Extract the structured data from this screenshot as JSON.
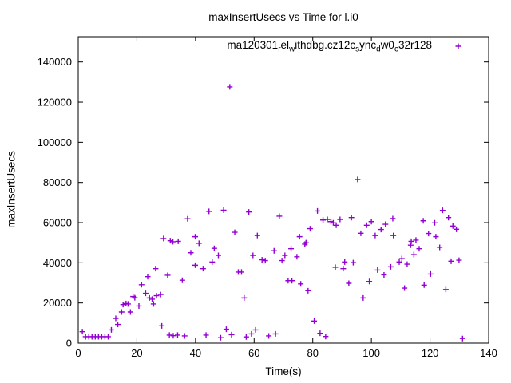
{
  "colors": {
    "series": "#9400D3",
    "axis": "#000000",
    "background": "#ffffff",
    "text": "#000000"
  },
  "legend": {
    "label_plain": "ma120301_rel_withdbg.cz12c_sync_dw0_c32r128",
    "segments": [
      {
        "text": "ma120301"
      },
      {
        "sub": "r"
      },
      {
        "text": "el"
      },
      {
        "sub": "w"
      },
      {
        "text": "ithdbg.cz12c"
      },
      {
        "sub": "s"
      },
      {
        "text": "ync"
      },
      {
        "sub": "d"
      },
      {
        "text": "w0"
      },
      {
        "sub": "c"
      },
      {
        "text": "32r128"
      }
    ],
    "marker": "plus"
  },
  "chart_data": {
    "type": "scatter",
    "title": "maxInsertUsecs vs Time for l.i0",
    "xlabel": "Time(s)",
    "ylabel": "maxInsertUsecs",
    "xlim": [
      0,
      140
    ],
    "x_ticks": [
      0,
      20,
      40,
      60,
      80,
      100,
      120,
      140
    ],
    "y_ticks": [
      0,
      20000,
      40000,
      60000,
      80000,
      100000,
      120000,
      140000
    ],
    "grid": false,
    "legend_position": "top-right-inside",
    "marker": "plus",
    "series": [
      {
        "name": "ma120301_rel_withdbg.cz12c_sync_dw0_c32r128",
        "points": [
          [
            1.4,
            5700
          ],
          [
            2.5,
            3200
          ],
          [
            3.6,
            3200
          ],
          [
            4.7,
            3200
          ],
          [
            5.8,
            3200
          ],
          [
            6.9,
            3200
          ],
          [
            8.0,
            3200
          ],
          [
            9.1,
            3200
          ],
          [
            10.2,
            3200
          ],
          [
            11.3,
            6600
          ],
          [
            12.8,
            12300
          ],
          [
            13.5,
            9300
          ],
          [
            14.8,
            15500
          ],
          [
            15.3,
            19200
          ],
          [
            16.3,
            19700
          ],
          [
            17.0,
            19500
          ],
          [
            17.8,
            15500
          ],
          [
            18.7,
            23200
          ],
          [
            19.3,
            22600
          ],
          [
            20.7,
            18500
          ],
          [
            21.6,
            29100
          ],
          [
            23.0,
            24800
          ],
          [
            23.7,
            33100
          ],
          [
            24.3,
            22500
          ],
          [
            25.2,
            21900
          ],
          [
            25.7,
            19500
          ],
          [
            26.4,
            37100
          ],
          [
            26.7,
            23600
          ],
          [
            28.1,
            24200
          ],
          [
            28.5,
            8600
          ],
          [
            29.1,
            52100
          ],
          [
            30.5,
            33800
          ],
          [
            31.1,
            4000
          ],
          [
            31.4,
            51000
          ],
          [
            32.3,
            50500
          ],
          [
            32.4,
            3700
          ],
          [
            33.9,
            4000
          ],
          [
            34.1,
            50700
          ],
          [
            35.5,
            31300
          ],
          [
            36.3,
            3600
          ],
          [
            37.3,
            61900
          ],
          [
            38.4,
            45000
          ],
          [
            39.9,
            53000
          ],
          [
            39.9,
            38800
          ],
          [
            41.2,
            49700
          ],
          [
            42.6,
            37100
          ],
          [
            43.6,
            4000
          ],
          [
            44.6,
            65600
          ],
          [
            45.7,
            40400
          ],
          [
            46.4,
            47200
          ],
          [
            47.8,
            43700
          ],
          [
            48.6,
            2700
          ],
          [
            49.6,
            66200
          ],
          [
            50.5,
            6900
          ],
          [
            51.7,
            127600
          ],
          [
            52.3,
            4200
          ],
          [
            53.4,
            55200
          ],
          [
            54.6,
            35400
          ],
          [
            55.7,
            35400
          ],
          [
            56.6,
            22500
          ],
          [
            57.3,
            3100
          ],
          [
            58.2,
            65300
          ],
          [
            59.1,
            4600
          ],
          [
            59.6,
            43700
          ],
          [
            60.5,
            6600
          ],
          [
            61.1,
            53600
          ],
          [
            62.7,
            41500
          ],
          [
            63.8,
            41100
          ],
          [
            65.0,
            3600
          ],
          [
            66.8,
            46000
          ],
          [
            67.3,
            4600
          ],
          [
            68.6,
            63200
          ],
          [
            69.5,
            41100
          ],
          [
            70.5,
            43700
          ],
          [
            71.6,
            31100
          ],
          [
            72.6,
            47000
          ],
          [
            72.9,
            31100
          ],
          [
            74.6,
            43000
          ],
          [
            75.5,
            53000
          ],
          [
            75.9,
            29500
          ],
          [
            77.3,
            49300
          ],
          [
            77.7,
            50000
          ],
          [
            78.4,
            26100
          ],
          [
            79.1,
            57000
          ],
          [
            80.5,
            11000
          ],
          [
            81.6,
            65800
          ],
          [
            82.5,
            4900
          ],
          [
            83.5,
            61300
          ],
          [
            84.4,
            3300
          ],
          [
            85.0,
            61600
          ],
          [
            86.2,
            60500
          ],
          [
            87.0,
            59900
          ],
          [
            87.7,
            37800
          ],
          [
            88.0,
            58700
          ],
          [
            89.3,
            61600
          ],
          [
            90.4,
            37100
          ],
          [
            90.9,
            40400
          ],
          [
            92.3,
            29800
          ],
          [
            93.2,
            62500
          ],
          [
            93.8,
            40100
          ],
          [
            95.3,
            81500
          ],
          [
            96.4,
            54700
          ],
          [
            97.2,
            22500
          ],
          [
            98.4,
            58700
          ],
          [
            99.3,
            30700
          ],
          [
            100.0,
            60500
          ],
          [
            101.3,
            53600
          ],
          [
            102.1,
            36400
          ],
          [
            103.3,
            56600
          ],
          [
            104.3,
            34000
          ],
          [
            104.8,
            59200
          ],
          [
            106.6,
            38000
          ],
          [
            107.3,
            62000
          ],
          [
            107.5,
            53600
          ],
          [
            109.5,
            40400
          ],
          [
            110.4,
            42100
          ],
          [
            111.3,
            27400
          ],
          [
            112.2,
            39300
          ],
          [
            113.4,
            48800
          ],
          [
            113.6,
            50700
          ],
          [
            114.5,
            44100
          ],
          [
            115.2,
            51300
          ],
          [
            116.3,
            47000
          ],
          [
            117.7,
            60900
          ],
          [
            118.0,
            28900
          ],
          [
            119.5,
            54600
          ],
          [
            120.2,
            34400
          ],
          [
            121.6,
            59900
          ],
          [
            122.0,
            53000
          ],
          [
            123.3,
            47700
          ],
          [
            124.3,
            66100
          ],
          [
            125.4,
            26700
          ],
          [
            126.3,
            62500
          ],
          [
            127.2,
            40800
          ],
          [
            127.8,
            58300
          ],
          [
            129.0,
            56700
          ],
          [
            129.9,
            41300
          ],
          [
            131.1,
            2300
          ]
        ]
      }
    ]
  }
}
